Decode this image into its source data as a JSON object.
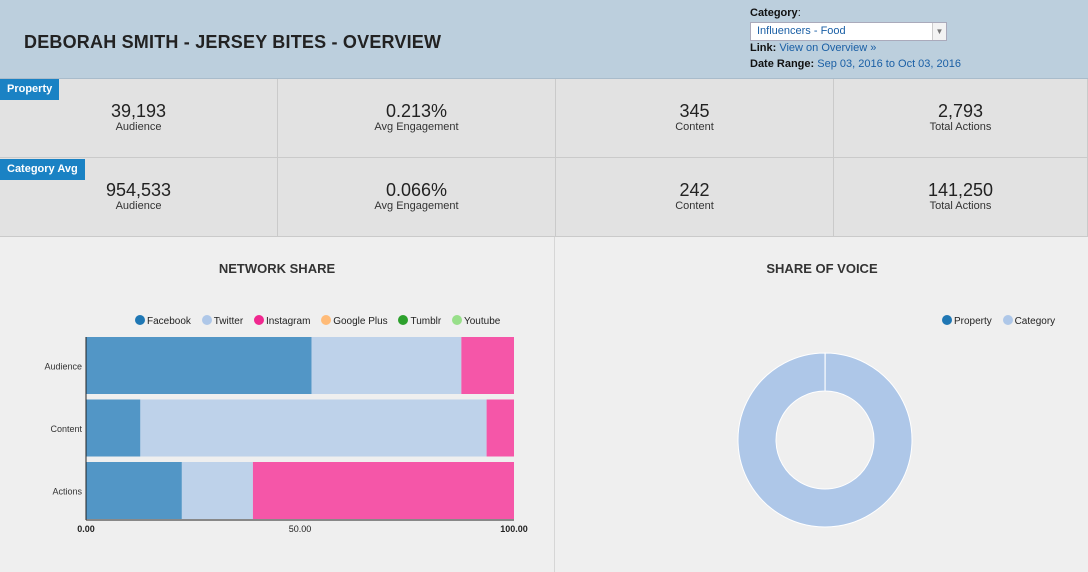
{
  "header": {
    "title": "DEBORAH SMITH - JERSEY BITES - OVERVIEW",
    "category_label": "Category",
    "category_value": "Influencers - Food",
    "link_label": "Link:",
    "link_text": "View on Overview »",
    "date_label": "Date Range:",
    "date_start": "Sep 03, 2016",
    "date_to": "to",
    "date_end": "Oct 03, 2016"
  },
  "property": {
    "tag": "Property",
    "stats": [
      {
        "value": "39,193",
        "label": "Audience"
      },
      {
        "value": "0.213%",
        "label": "Avg Engagement"
      },
      {
        "value": "345",
        "label": "Content"
      },
      {
        "value": "2,793",
        "label": "Total Actions"
      }
    ]
  },
  "category_avg": {
    "tag": "Category Avg",
    "stats": [
      {
        "value": "954,533",
        "label": "Audience"
      },
      {
        "value": "0.066%",
        "label": "Avg Engagement"
      },
      {
        "value": "242",
        "label": "Content"
      },
      {
        "value": "141,250",
        "label": "Total Actions"
      }
    ]
  },
  "network_share": {
    "title": "NETWORK SHARE",
    "legend": [
      {
        "name": "Facebook",
        "color": "#1f77b4"
      },
      {
        "name": "Twitter",
        "color": "#aec7e8"
      },
      {
        "name": "Instagram",
        "color": "#f0288f"
      },
      {
        "name": "Google Plus",
        "color": "#ffbb78"
      },
      {
        "name": "Tumblr",
        "color": "#2ca02c"
      },
      {
        "name": "Youtube",
        "color": "#98df8a"
      }
    ]
  },
  "share_of_voice": {
    "title": "SHARE OF VOICE",
    "legend": [
      {
        "name": "Property",
        "color": "#1f77b4"
      },
      {
        "name": "Category",
        "color": "#aec7e8"
      }
    ]
  },
  "chart_data": [
    {
      "type": "bar",
      "orientation": "horizontal",
      "stacked": true,
      "title": "NETWORK SHARE",
      "categories": [
        "Audience",
        "Content",
        "Actions"
      ],
      "series": [
        {
          "name": "Facebook",
          "color": "#5296c6",
          "values": [
            52.7,
            12.7,
            22.4
          ]
        },
        {
          "name": "Twitter",
          "color": "#bed2ea",
          "values": [
            35.0,
            80.9,
            16.6
          ]
        },
        {
          "name": "Instagram",
          "color": "#f556a8",
          "values": [
            12.3,
            6.4,
            61.0
          ]
        },
        {
          "name": "Google Plus",
          "color": "#ffbb78",
          "values": [
            0,
            0,
            0
          ]
        },
        {
          "name": "Tumblr",
          "color": "#2ca02c",
          "values": [
            0,
            0,
            0
          ]
        },
        {
          "name": "Youtube",
          "color": "#98df8a",
          "values": [
            0,
            0,
            0
          ]
        }
      ],
      "xlim": [
        0,
        100
      ],
      "xticks": [
        "0.00",
        "50.00",
        "100.00"
      ],
      "legend_position": "top"
    },
    {
      "type": "pie",
      "donut": true,
      "title": "SHARE OF VOICE",
      "slices": [
        {
          "name": "Property",
          "color": "#1f77b4",
          "value": 0.04
        },
        {
          "name": "Category",
          "color": "#aec7e8",
          "value": 99.96
        }
      ],
      "legend_position": "top-right"
    }
  ]
}
